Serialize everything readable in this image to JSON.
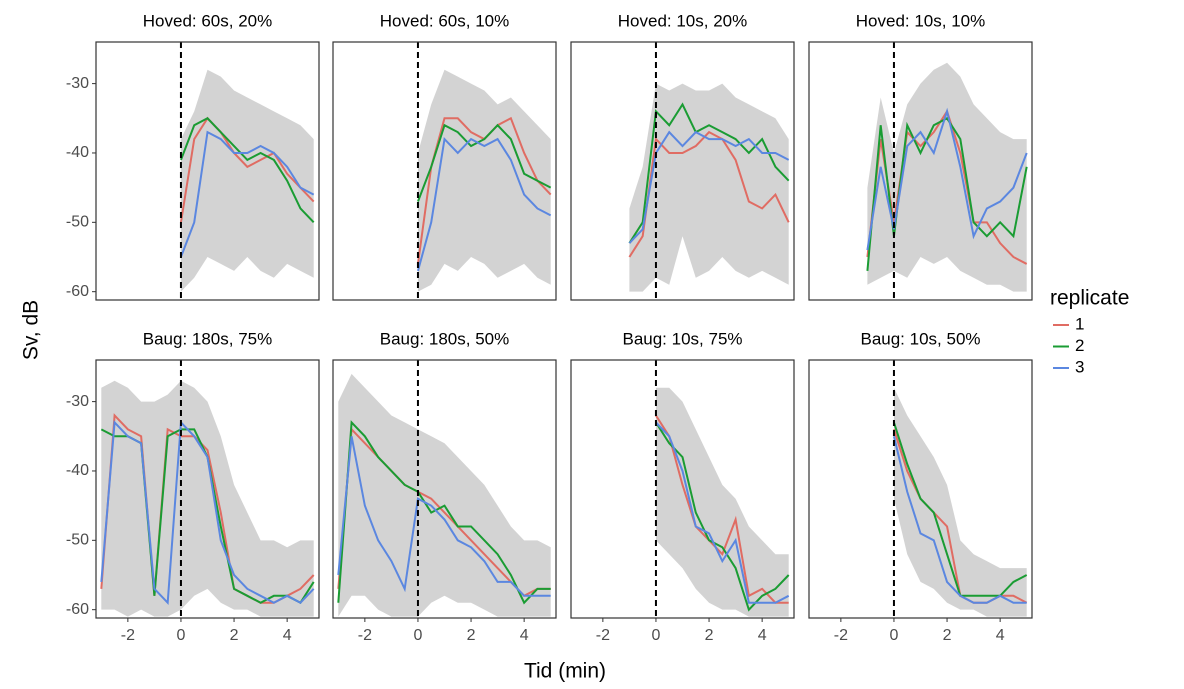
{
  "figure": {
    "ylabel": "Sv, dB",
    "xlabel": "Tid (min)",
    "legend_title": "replicate"
  },
  "chart_data": [
    {
      "type": "line",
      "title": "Hoved: 60s, 20%",
      "x": [
        -3,
        -2.5,
        -2,
        -1.5,
        -1,
        -0.5,
        0,
        0.5,
        1,
        1.5,
        2,
        2.5,
        3,
        3.5,
        4,
        4.5,
        5
      ],
      "xlim": [
        -3.2,
        5.2
      ],
      "ylim": [
        -61.2,
        -24
      ],
      "xticks": [
        -2,
        0,
        2,
        4
      ],
      "yticks": [
        -60,
        -50,
        -40,
        -30
      ],
      "vline": 0,
      "band": {
        "lower": [
          null,
          null,
          null,
          null,
          null,
          null,
          -60,
          -58,
          -55,
          -56,
          -57,
          -55,
          -57,
          -58,
          -56,
          -57,
          -58
        ],
        "upper": [
          null,
          null,
          null,
          null,
          null,
          null,
          -38,
          -34,
          -28,
          -29,
          -31,
          -32,
          -33,
          -34,
          -35,
          -36,
          -38
        ]
      },
      "series": [
        {
          "name": "1",
          "color": "#e06c63",
          "values": [
            null,
            null,
            null,
            null,
            null,
            null,
            -50,
            -38,
            -35,
            -37,
            -40,
            -42,
            -41,
            -40,
            -43,
            -45,
            -47
          ]
        },
        {
          "name": "2",
          "color": "#1a9c33",
          "values": [
            null,
            null,
            null,
            null,
            null,
            null,
            -41,
            -36,
            -35,
            -37,
            -39,
            -41,
            -40,
            -41,
            -44,
            -48,
            -50
          ]
        },
        {
          "name": "3",
          "color": "#5b87e0",
          "values": [
            null,
            null,
            null,
            null,
            null,
            null,
            -55,
            -50,
            -37,
            -38,
            -40,
            -40,
            -39,
            -40,
            -42,
            -45,
            -46
          ]
        }
      ]
    },
    {
      "type": "line",
      "title": "Hoved: 60s, 10%",
      "x": [
        -3,
        -2.5,
        -2,
        -1.5,
        -1,
        -0.5,
        0,
        0.5,
        1,
        1.5,
        2,
        2.5,
        3,
        3.5,
        4,
        4.5,
        5
      ],
      "xlim": [
        -3.2,
        5.2
      ],
      "ylim": [
        -61.2,
        -24
      ],
      "xticks": [
        -2,
        0,
        2,
        4
      ],
      "yticks": [
        -60,
        -50,
        -40,
        -30
      ],
      "vline": 0,
      "band": {
        "lower": [
          null,
          null,
          null,
          null,
          null,
          null,
          -60,
          -59,
          -56,
          -57,
          -55,
          -56,
          -58,
          -57,
          -56,
          -58,
          -59
        ],
        "upper": [
          null,
          null,
          null,
          null,
          null,
          null,
          -40,
          -33,
          -28,
          -29,
          -30,
          -31,
          -33,
          -32,
          -34,
          -36,
          -38
        ]
      },
      "series": [
        {
          "name": "1",
          "color": "#e06c63",
          "values": [
            null,
            null,
            null,
            null,
            null,
            null,
            -56,
            -42,
            -35,
            -35,
            -37,
            -38,
            -36,
            -35,
            -40,
            -44,
            -46
          ]
        },
        {
          "name": "2",
          "color": "#1a9c33",
          "values": [
            null,
            null,
            null,
            null,
            null,
            null,
            -47,
            -42,
            -36,
            -37,
            -39,
            -38,
            -36,
            -38,
            -43,
            -44,
            -45
          ]
        },
        {
          "name": "3",
          "color": "#5b87e0",
          "values": [
            null,
            null,
            null,
            null,
            null,
            null,
            -57,
            -50,
            -38,
            -40,
            -38,
            -39,
            -38,
            -41,
            -46,
            -48,
            -49
          ]
        }
      ]
    },
    {
      "type": "line",
      "title": "Hoved: 10s, 20%",
      "x": [
        -3,
        -2.5,
        -2,
        -1.5,
        -1,
        -0.5,
        0,
        0.5,
        1,
        1.5,
        2,
        2.5,
        3,
        3.5,
        4,
        4.5,
        5
      ],
      "xlim": [
        -3.2,
        5.2
      ],
      "ylim": [
        -61.2,
        -24
      ],
      "xticks": [
        -2,
        0,
        2,
        4
      ],
      "yticks": [
        -60,
        -50,
        -40,
        -30
      ],
      "vline": 0,
      "band": {
        "lower": [
          null,
          null,
          null,
          null,
          -60,
          -60,
          -58,
          -59,
          -52,
          -58,
          -57,
          -55,
          -57,
          -58,
          -57,
          -58,
          -59
        ],
        "upper": [
          null,
          null,
          null,
          null,
          -48,
          -42,
          -30,
          -31,
          -30,
          -31,
          -31,
          -30,
          -32,
          -33,
          -34,
          -35,
          -38
        ]
      },
      "series": [
        {
          "name": "1",
          "color": "#e06c63",
          "values": [
            null,
            null,
            null,
            null,
            -55,
            -52,
            -38,
            -40,
            -40,
            -39,
            -37,
            -38,
            -41,
            -47,
            -48,
            -46,
            -50
          ]
        },
        {
          "name": "2",
          "color": "#1a9c33",
          "values": [
            null,
            null,
            null,
            null,
            -53,
            -50,
            -34,
            -36,
            -33,
            -37,
            -36,
            -37,
            -38,
            -40,
            -38,
            -42,
            -44
          ]
        },
        {
          "name": "3",
          "color": "#5b87e0",
          "values": [
            null,
            null,
            null,
            null,
            -53,
            -51,
            -40,
            -37,
            -39,
            -37,
            -38,
            -38,
            -39,
            -38,
            -40,
            -40,
            -41
          ]
        }
      ]
    },
    {
      "type": "line",
      "title": "Hoved: 10s, 10%",
      "x": [
        -3,
        -2.5,
        -2,
        -1.5,
        -1,
        -0.5,
        0,
        0.5,
        1,
        1.5,
        2,
        2.5,
        3,
        3.5,
        4,
        4.5,
        5
      ],
      "xlim": [
        -3.2,
        5.2
      ],
      "ylim": [
        -61.2,
        -24
      ],
      "xticks": [
        -2,
        0,
        2,
        4
      ],
      "yticks": [
        -60,
        -50,
        -40,
        -30
      ],
      "vline": 0,
      "band": {
        "lower": [
          null,
          null,
          null,
          null,
          -59,
          -58,
          -57,
          -58,
          -55,
          -56,
          -55,
          -57,
          -58,
          -59,
          -59,
          -60,
          -60
        ],
        "upper": [
          null,
          null,
          null,
          null,
          -45,
          -32,
          -40,
          -33,
          -30,
          -28,
          -27,
          -29,
          -33,
          -35,
          -37,
          -38,
          -38
        ]
      },
      "series": [
        {
          "name": "1",
          "color": "#e06c63",
          "values": [
            null,
            null,
            null,
            null,
            -55,
            -38,
            -50,
            -37,
            -39,
            -37,
            -34,
            -40,
            -50,
            -50,
            -53,
            -55,
            -56
          ]
        },
        {
          "name": "2",
          "color": "#1a9c33",
          "values": [
            null,
            null,
            null,
            null,
            -57,
            -36,
            -52,
            -36,
            -40,
            -36,
            -35,
            -38,
            -50,
            -52,
            -50,
            -52,
            -42
          ]
        },
        {
          "name": "3",
          "color": "#5b87e0",
          "values": [
            null,
            null,
            null,
            null,
            -54,
            -42,
            -51,
            -39,
            -37,
            -40,
            -34,
            -42,
            -52,
            -48,
            -47,
            -45,
            -40
          ]
        }
      ]
    },
    {
      "type": "line",
      "title": "Baug: 180s, 75%",
      "x": [
        -3,
        -2.5,
        -2,
        -1.5,
        -1,
        -0.5,
        0,
        0.5,
        1,
        1.5,
        2,
        2.5,
        3,
        3.5,
        4,
        4.5,
        5
      ],
      "xlim": [
        -3.2,
        5.2
      ],
      "ylim": [
        -61.2,
        -24
      ],
      "xticks": [
        -2,
        0,
        2,
        4
      ],
      "yticks": [
        -60,
        -50,
        -40,
        -30
      ],
      "vline": 0,
      "band": {
        "lower": [
          -60,
          -60,
          -61,
          -60,
          -61,
          -61,
          -60,
          -58,
          -57,
          -59,
          -60,
          -60,
          -61,
          -61,
          -61,
          -61,
          -61
        ],
        "upper": [
          -28,
          -27,
          -28,
          -30,
          -30,
          -29,
          -27,
          -28,
          -30,
          -35,
          -42,
          -46,
          -50,
          -50,
          -51,
          -50,
          -50
        ]
      },
      "series": [
        {
          "name": "1",
          "color": "#e06c63",
          "values": [
            -57,
            -32,
            -34,
            -35,
            -58,
            -34,
            -35,
            -35,
            -37,
            -46,
            -57,
            -58,
            -59,
            -59,
            -58,
            -57,
            -55
          ]
        },
        {
          "name": "2",
          "color": "#1a9c33",
          "values": [
            -34,
            -35,
            -35,
            -36,
            -58,
            -35,
            -34,
            -34,
            -38,
            -48,
            -57,
            -58,
            -59,
            -58,
            -58,
            -59,
            -56
          ]
        },
        {
          "name": "3",
          "color": "#5b87e0",
          "values": [
            -56,
            -33,
            -35,
            -36,
            -57,
            -59,
            -33,
            -35,
            -38,
            -50,
            -55,
            -57,
            -58,
            -59,
            -58,
            -59,
            -57
          ]
        }
      ]
    },
    {
      "type": "line",
      "title": "Baug: 180s, 50%",
      "x": [
        -3,
        -2.5,
        -2,
        -1.5,
        -1,
        -0.5,
        0,
        0.5,
        1,
        1.5,
        2,
        2.5,
        3,
        3.5,
        4,
        4.5,
        5
      ],
      "xlim": [
        -3.2,
        5.2
      ],
      "ylim": [
        -61.2,
        -24
      ],
      "xticks": [
        -2,
        0,
        2,
        4
      ],
      "yticks": [
        -60,
        -50,
        -40,
        -30
      ],
      "vline": 0,
      "band": {
        "lower": [
          -61,
          -58,
          -58,
          -60,
          -61,
          -61,
          -61,
          -59,
          -58,
          -59,
          -59,
          -60,
          -61,
          -61,
          -61,
          -61,
          -61
        ],
        "upper": [
          -30,
          -26,
          -28,
          -30,
          -32,
          -33,
          -34,
          -35,
          -36,
          -38,
          -40,
          -42,
          -45,
          -48,
          -50,
          -50,
          -51
        ]
      },
      "series": [
        {
          "name": "1",
          "color": "#e06c63",
          "values": [
            -57,
            -34,
            -36,
            -38,
            -40,
            -42,
            -43,
            -44,
            -46,
            -48,
            -50,
            -52,
            -54,
            -56,
            -58,
            -57,
            -57
          ]
        },
        {
          "name": "2",
          "color": "#1a9c33",
          "values": [
            -59,
            -33,
            -35,
            -38,
            -40,
            -42,
            -43,
            -46,
            -45,
            -48,
            -48,
            -50,
            -52,
            -55,
            -59,
            -57,
            -57
          ]
        },
        {
          "name": "3",
          "color": "#5b87e0",
          "values": [
            -55,
            -35,
            -45,
            -50,
            -53,
            -57,
            -44,
            -45,
            -47,
            -50,
            -51,
            -53,
            -56,
            -56,
            -58,
            -58,
            -58
          ]
        }
      ]
    },
    {
      "type": "line",
      "title": "Baug: 10s, 75%",
      "x": [
        -3,
        -2.5,
        -2,
        -1.5,
        -1,
        -0.5,
        0,
        0.5,
        1,
        1.5,
        2,
        2.5,
        3,
        3.5,
        4,
        4.5,
        5
      ],
      "xlim": [
        -3.2,
        5.2
      ],
      "ylim": [
        -61.2,
        -24
      ],
      "xticks": [
        -2,
        0,
        2,
        4
      ],
      "yticks": [
        -60,
        -50,
        -40,
        -30
      ],
      "vline": 0,
      "band": {
        "lower": [
          null,
          null,
          null,
          null,
          null,
          null,
          -50,
          -52,
          -54,
          -57,
          -59,
          -60,
          -60,
          -61,
          -61,
          -61,
          -61
        ],
        "upper": [
          null,
          null,
          null,
          null,
          null,
          null,
          -28,
          -28,
          -30,
          -34,
          -38,
          -42,
          -44,
          -48,
          -50,
          -52,
          -52
        ]
      },
      "series": [
        {
          "name": "1",
          "color": "#e06c63",
          "values": [
            null,
            null,
            null,
            null,
            null,
            null,
            -32,
            -35,
            -42,
            -48,
            -50,
            -52,
            -47,
            -58,
            -57,
            -59,
            -59
          ]
        },
        {
          "name": "2",
          "color": "#1a9c33",
          "values": [
            null,
            null,
            null,
            null,
            null,
            null,
            -33,
            -36,
            -38,
            -46,
            -50,
            -51,
            -54,
            -60,
            -58,
            -57,
            -55
          ]
        },
        {
          "name": "3",
          "color": "#5b87e0",
          "values": [
            null,
            null,
            null,
            null,
            null,
            null,
            -33,
            -35,
            -40,
            -48,
            -49,
            -53,
            -50,
            -59,
            -59,
            -59,
            -58
          ]
        }
      ]
    },
    {
      "type": "line",
      "title": "Baug: 10s, 50%",
      "x": [
        -3,
        -2.5,
        -2,
        -1.5,
        -1,
        -0.5,
        0,
        0.5,
        1,
        1.5,
        2,
        2.5,
        3,
        3.5,
        4,
        4.5,
        5
      ],
      "xlim": [
        -3.2,
        5.2
      ],
      "ylim": [
        -61.2,
        -24
      ],
      "xticks": [
        -2,
        0,
        2,
        4
      ],
      "yticks": [
        -60,
        -50,
        -40,
        -30
      ],
      "vline": 0,
      "band": {
        "lower": [
          null,
          null,
          null,
          null,
          null,
          null,
          -44,
          -52,
          -56,
          -57,
          -59,
          -60,
          -60,
          -61,
          -61,
          -61,
          -61
        ],
        "upper": [
          null,
          null,
          null,
          null,
          null,
          null,
          -28,
          -32,
          -35,
          -38,
          -42,
          -50,
          -52,
          -53,
          -54,
          -54,
          -54
        ]
      },
      "series": [
        {
          "name": "1",
          "color": "#e06c63",
          "values": [
            null,
            null,
            null,
            null,
            null,
            null,
            -34,
            -40,
            -44,
            -46,
            -48,
            -58,
            -59,
            -59,
            -58,
            -58,
            -59
          ]
        },
        {
          "name": "2",
          "color": "#1a9c33",
          "values": [
            null,
            null,
            null,
            null,
            null,
            null,
            -33,
            -39,
            -44,
            -46,
            -52,
            -58,
            -58,
            -58,
            -58,
            -56,
            -55
          ]
        },
        {
          "name": "3",
          "color": "#5b87e0",
          "values": [
            null,
            null,
            null,
            null,
            null,
            null,
            -35,
            -43,
            -49,
            -50,
            -56,
            -58,
            -59,
            -59,
            -58,
            -59,
            -59
          ]
        }
      ]
    }
  ]
}
